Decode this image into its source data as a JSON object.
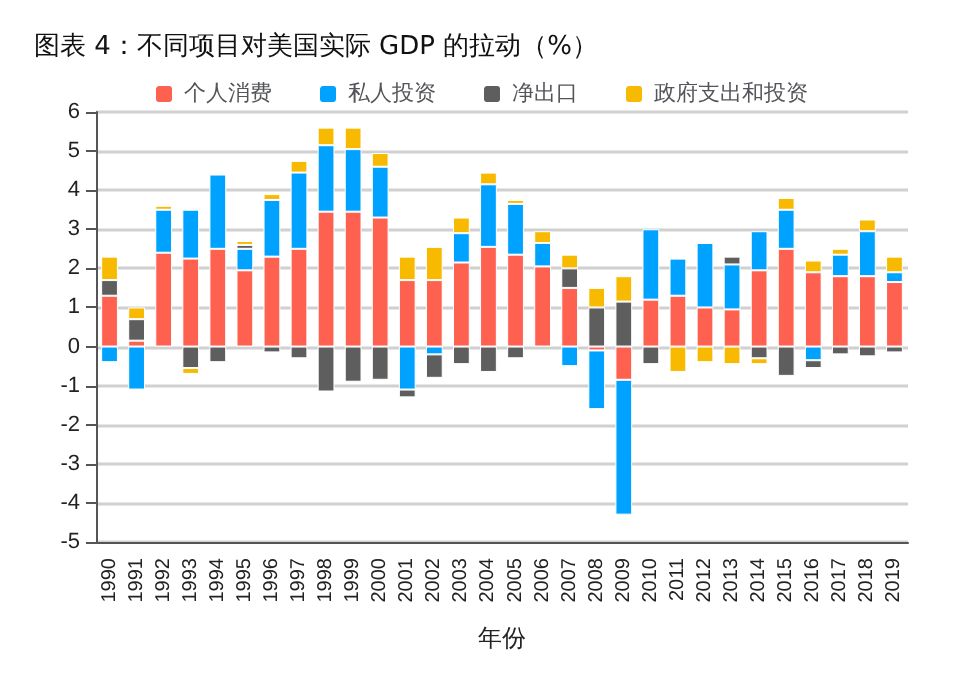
{
  "chart_data": {
    "type": "bar",
    "stacked": true,
    "title": "图表 4：不同项目对美国实际 GDP 的拉动（%）",
    "xlabel": "年份",
    "categories": [
      "1990",
      "1991",
      "1992",
      "1993",
      "1994",
      "1995",
      "1996",
      "1997",
      "1998",
      "1999",
      "2000",
      "2001",
      "2002",
      "2003",
      "2004",
      "2005",
      "2006",
      "2007",
      "2008",
      "2009",
      "2010",
      "2011",
      "2012",
      "2013",
      "2014",
      "2015",
      "2016",
      "2017",
      "2018",
      "2019"
    ],
    "series": [
      {
        "name": "个人消费",
        "color": "#ff6150",
        "values": [
          1.3,
          0.15,
          2.4,
          2.25,
          2.5,
          1.95,
          2.3,
          2.5,
          3.45,
          3.45,
          3.3,
          1.7,
          1.7,
          2.15,
          2.55,
          2.35,
          2.05,
          1.5,
          -0.1,
          -0.85,
          1.2,
          1.3,
          1.0,
          0.95,
          1.95,
          2.5,
          1.9,
          1.8,
          1.8,
          1.65
        ]
      },
      {
        "name": "私人投资",
        "color": "#00a2ff",
        "values": [
          -0.4,
          -1.1,
          1.1,
          1.25,
          1.9,
          0.55,
          1.45,
          1.95,
          1.7,
          1.6,
          1.3,
          -1.1,
          -0.2,
          0.75,
          1.6,
          1.3,
          0.6,
          -0.5,
          -1.5,
          -3.45,
          1.8,
          0.95,
          1.65,
          1.15,
          1.0,
          1.0,
          -0.35,
          0.55,
          1.15,
          0.25
        ]
      },
      {
        "name": "净出口",
        "color": "#5e5e5e",
        "values": [
          0.4,
          0.55,
          null,
          -0.55,
          -0.4,
          0.1,
          -0.15,
          -0.3,
          -1.15,
          -0.9,
          -0.85,
          -0.2,
          -0.6,
          -0.45,
          -0.65,
          -0.3,
          null,
          0.5,
          1.0,
          1.15,
          -0.45,
          null,
          null,
          0.2,
          -0.3,
          -0.75,
          -0.2,
          -0.2,
          -0.25,
          -0.15
        ]
      },
      {
        "name": "政府支出和投资",
        "color": "#f8ba00",
        "values": [
          0.6,
          0.3,
          0.1,
          -0.15,
          null,
          0.1,
          0.15,
          0.3,
          0.45,
          0.55,
          0.35,
          0.6,
          0.85,
          0.4,
          0.3,
          0.1,
          0.3,
          0.35,
          0.5,
          0.65,
          null,
          -0.65,
          -0.4,
          -0.45,
          -0.15,
          0.3,
          0.3,
          0.15,
          0.3,
          0.4
        ]
      }
    ],
    "ylim": [
      -5,
      6
    ],
    "yticks": [
      -5,
      -4,
      -3,
      -2,
      -1,
      0,
      1,
      2,
      3,
      4,
      5,
      6
    ],
    "grid": "y",
    "legend": "top"
  }
}
